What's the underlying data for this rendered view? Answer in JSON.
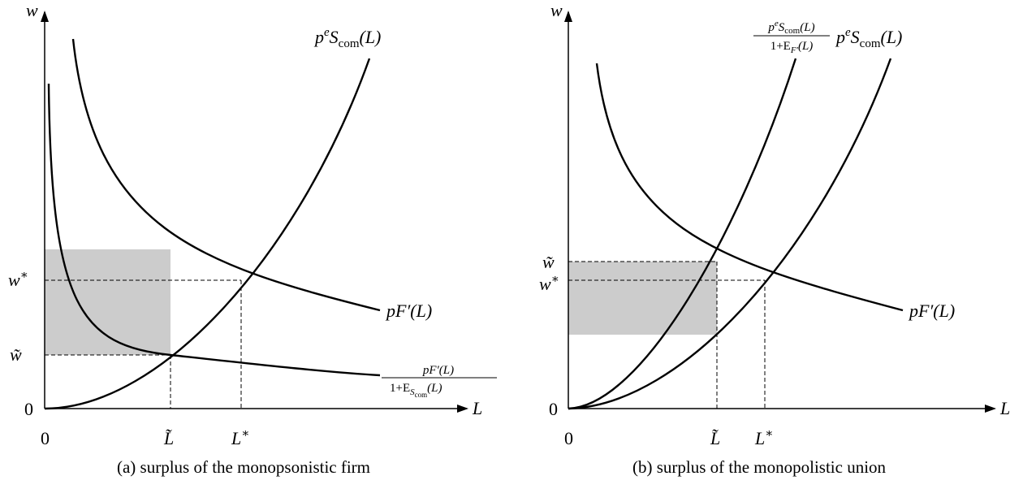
{
  "panels": [
    {
      "axis_y": "w",
      "axis_x": "L",
      "zero_y": "0",
      "zero_x": "0",
      "w_star": [
        "w",
        "∗"
      ],
      "w_tilde": "w̃",
      "L_tilde": "L̃",
      "L_star": [
        "L",
        "∗"
      ],
      "supply_label": [
        "p",
        "e",
        "S",
        "com",
        "(L)"
      ],
      "demand_label": "pF′(L)",
      "fraction_label": {
        "numerator": [
          "pF′(L)"
        ],
        "denominator": [
          "1+E",
          "S",
          "com",
          "(L)"
        ]
      },
      "caption": "(a) surplus of the monopsonistic firm"
    },
    {
      "axis_y": "w",
      "axis_x": "L",
      "zero_y": "0",
      "zero_x": "0",
      "w_star": [
        "w",
        "∗"
      ],
      "w_tilde": "w̃",
      "L_tilde": "L̃",
      "L_star": [
        "L",
        "∗"
      ],
      "supply_label": [
        "p",
        "e",
        "S",
        "com",
        "(L)"
      ],
      "demand_label": "pF′(L)",
      "fraction_label": {
        "numerator": [
          "p",
          "e",
          "S",
          "com",
          "(L)"
        ],
        "denominator": [
          "1+E",
          "F′",
          "(L)"
        ]
      },
      "caption": "(b) surplus of the monopolistic union"
    }
  ]
}
